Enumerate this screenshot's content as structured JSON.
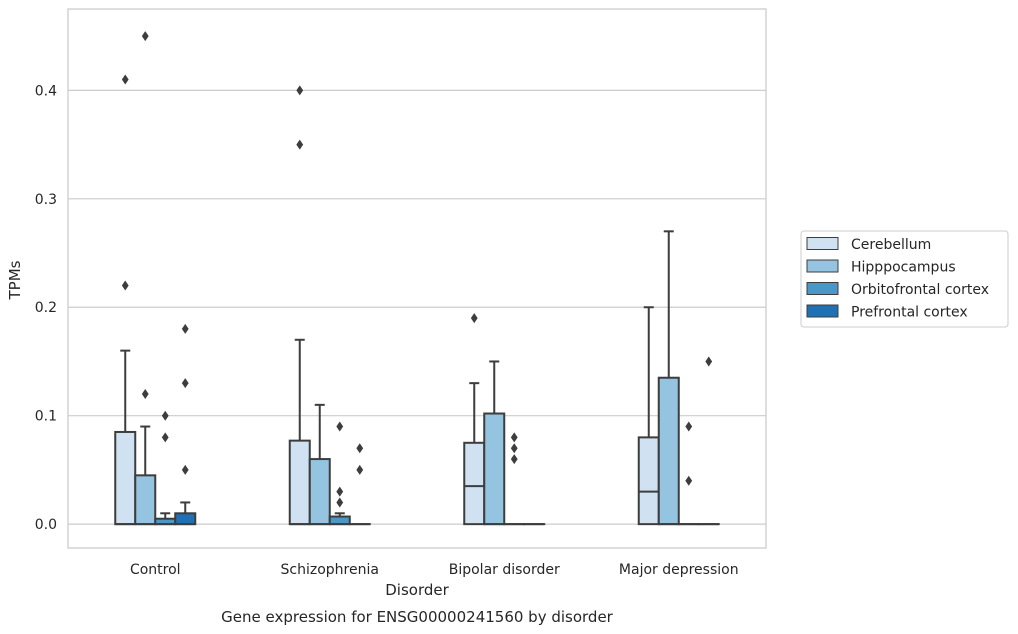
{
  "caption": "Gene expression for ENSG00000241560 by disorder",
  "chart_data": {
    "type": "box",
    "xlabel": "Disorder",
    "ylabel": "TPMs",
    "ylim": [
      -0.022,
      0.475
    ],
    "yticks": [
      0.0,
      0.1,
      0.2,
      0.3,
      0.4
    ],
    "ytick_labels": [
      "0.0",
      "0.1",
      "0.2",
      "0.3",
      "0.4"
    ],
    "grid": "horizontal",
    "legend_position": "right",
    "categories": [
      "Control",
      "Schizophrenia",
      "Bipolar disorder",
      "Major depression"
    ],
    "series": [
      {
        "name": "Cerebellum",
        "color": "#d0e1f2",
        "boxes": [
          {
            "q1": 0.0,
            "median": 0.0,
            "q3": 0.085,
            "whisker_low": 0.0,
            "whisker_high": 0.16,
            "outliers": [
              0.22,
              0.41
            ]
          },
          {
            "q1": 0.0,
            "median": 0.0,
            "q3": 0.077,
            "whisker_low": 0.0,
            "whisker_high": 0.17,
            "outliers": [
              0.35,
              0.4
            ]
          },
          {
            "q1": 0.0,
            "median": 0.035,
            "q3": 0.075,
            "whisker_low": 0.0,
            "whisker_high": 0.13,
            "outliers": [
              0.19
            ]
          },
          {
            "q1": 0.0,
            "median": 0.03,
            "q3": 0.08,
            "whisker_low": 0.0,
            "whisker_high": 0.2,
            "outliers": []
          }
        ]
      },
      {
        "name": "Hipppocampus",
        "color": "#94c4df",
        "boxes": [
          {
            "q1": 0.0,
            "median": 0.0,
            "q3": 0.045,
            "whisker_low": 0.0,
            "whisker_high": 0.09,
            "outliers": [
              0.12,
              0.45
            ]
          },
          {
            "q1": 0.0,
            "median": 0.0,
            "q3": 0.06,
            "whisker_low": 0.0,
            "whisker_high": 0.11,
            "outliers": []
          },
          {
            "q1": 0.0,
            "median": 0.0,
            "q3": 0.102,
            "whisker_low": 0.0,
            "whisker_high": 0.15,
            "outliers": []
          },
          {
            "q1": 0.0,
            "median": 0.0,
            "q3": 0.135,
            "whisker_low": 0.0,
            "whisker_high": 0.27,
            "outliers": []
          }
        ]
      },
      {
        "name": "Orbitofrontal cortex",
        "color": "#4a98c9",
        "boxes": [
          {
            "q1": 0.0,
            "median": 0.0,
            "q3": 0.005,
            "whisker_low": 0.0,
            "whisker_high": 0.01,
            "outliers": [
              0.08,
              0.1
            ]
          },
          {
            "q1": 0.0,
            "median": 0.0,
            "q3": 0.007,
            "whisker_low": 0.0,
            "whisker_high": 0.01,
            "outliers": [
              0.02,
              0.03,
              0.09
            ]
          },
          {
            "q1": 0.0,
            "median": 0.0,
            "q3": 0.0,
            "whisker_low": 0.0,
            "whisker_high": 0.0,
            "outliers": [
              0.06,
              0.07,
              0.08
            ]
          },
          {
            "q1": 0.0,
            "median": 0.0,
            "q3": 0.0,
            "whisker_low": 0.0,
            "whisker_high": 0.0,
            "outliers": [
              0.04,
              0.09
            ]
          }
        ]
      },
      {
        "name": "Prefrontal cortex",
        "color": "#2070b4",
        "boxes": [
          {
            "q1": 0.0,
            "median": 0.0,
            "q3": 0.01,
            "whisker_low": 0.0,
            "whisker_high": 0.02,
            "outliers": [
              0.05,
              0.13,
              0.18
            ]
          },
          {
            "q1": 0.0,
            "median": 0.0,
            "q3": 0.0,
            "whisker_low": 0.0,
            "whisker_high": 0.0,
            "outliers": [
              0.05,
              0.07
            ]
          },
          {
            "q1": 0.0,
            "median": 0.0,
            "q3": 0.0,
            "whisker_low": 0.0,
            "whisker_high": 0.0,
            "outliers": []
          },
          {
            "q1": 0.0,
            "median": 0.0,
            "q3": 0.0,
            "whisker_low": 0.0,
            "whisker_high": 0.0,
            "outliers": [
              0.15
            ]
          }
        ]
      }
    ],
    "colors": {
      "edge": "#3d3d3d",
      "grid": "#cccccc",
      "frame": "#cccccc",
      "outlier": "#3d3d3d"
    }
  }
}
